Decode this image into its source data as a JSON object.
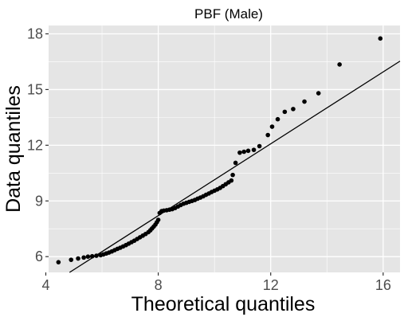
{
  "chart_data": {
    "type": "scatter",
    "title": "PBF (Male)",
    "xlabel": "Theoretical quantiles",
    "ylabel": "Data quantiles",
    "xlim": [
      4.1,
      16.6
    ],
    "ylim": [
      5.15,
      18.45
    ],
    "x_ticks": [
      4,
      8,
      12,
      16
    ],
    "y_ticks": [
      6,
      9,
      12,
      15,
      18
    ],
    "grid": true,
    "panel_background": "#e5e5e5",
    "grid_color": "#ffffff",
    "point_color": "#000000",
    "reference_line": {
      "x": [
        4.1,
        16.6
      ],
      "y": [
        4.43,
        16.53
      ]
    },
    "series": [
      {
        "points": [
          [
            4.45,
            5.7
          ],
          [
            4.9,
            5.83
          ],
          [
            5.15,
            5.9
          ],
          [
            5.35,
            5.95
          ],
          [
            5.5,
            6.0
          ],
          [
            5.65,
            6.02
          ],
          [
            5.8,
            6.05
          ],
          [
            5.95,
            6.08
          ],
          [
            6.05,
            6.12
          ],
          [
            6.15,
            6.17
          ],
          [
            6.25,
            6.22
          ],
          [
            6.35,
            6.28
          ],
          [
            6.45,
            6.35
          ],
          [
            6.55,
            6.42
          ],
          [
            6.65,
            6.48
          ],
          [
            6.75,
            6.55
          ],
          [
            6.85,
            6.62
          ],
          [
            6.95,
            6.7
          ],
          [
            7.05,
            6.78
          ],
          [
            7.15,
            6.86
          ],
          [
            7.25,
            6.95
          ],
          [
            7.35,
            7.04
          ],
          [
            7.45,
            7.13
          ],
          [
            7.55,
            7.22
          ],
          [
            7.65,
            7.32
          ],
          [
            7.72,
            7.42
          ],
          [
            7.78,
            7.52
          ],
          [
            7.84,
            7.62
          ],
          [
            7.9,
            7.73
          ],
          [
            7.95,
            7.85
          ],
          [
            8.0,
            7.98
          ],
          [
            8.05,
            8.35
          ],
          [
            8.12,
            8.45
          ],
          [
            8.2,
            8.48
          ],
          [
            8.3,
            8.5
          ],
          [
            8.4,
            8.53
          ],
          [
            8.5,
            8.56
          ],
          [
            8.6,
            8.62
          ],
          [
            8.7,
            8.7
          ],
          [
            8.8,
            8.78
          ],
          [
            8.9,
            8.85
          ],
          [
            9.0,
            8.9
          ],
          [
            9.1,
            8.95
          ],
          [
            9.2,
            9.0
          ],
          [
            9.3,
            9.05
          ],
          [
            9.4,
            9.12
          ],
          [
            9.5,
            9.18
          ],
          [
            9.6,
            9.25
          ],
          [
            9.7,
            9.33
          ],
          [
            9.8,
            9.4
          ],
          [
            9.9,
            9.48
          ],
          [
            10.0,
            9.55
          ],
          [
            10.1,
            9.62
          ],
          [
            10.2,
            9.7
          ],
          [
            10.3,
            9.8
          ],
          [
            10.4,
            9.9
          ],
          [
            10.5,
            10.0
          ],
          [
            10.6,
            10.1
          ],
          [
            10.65,
            10.4
          ],
          [
            10.75,
            11.05
          ],
          [
            10.9,
            11.6
          ],
          [
            11.05,
            11.65
          ],
          [
            11.2,
            11.7
          ],
          [
            11.4,
            11.75
          ],
          [
            11.6,
            11.95
          ],
          [
            11.9,
            12.55
          ],
          [
            12.05,
            13.0
          ],
          [
            12.25,
            13.4
          ],
          [
            12.5,
            13.8
          ],
          [
            12.8,
            13.95
          ],
          [
            13.2,
            14.35
          ],
          [
            13.7,
            14.8
          ],
          [
            14.45,
            16.35
          ],
          [
            15.9,
            17.75
          ]
        ]
      }
    ]
  }
}
